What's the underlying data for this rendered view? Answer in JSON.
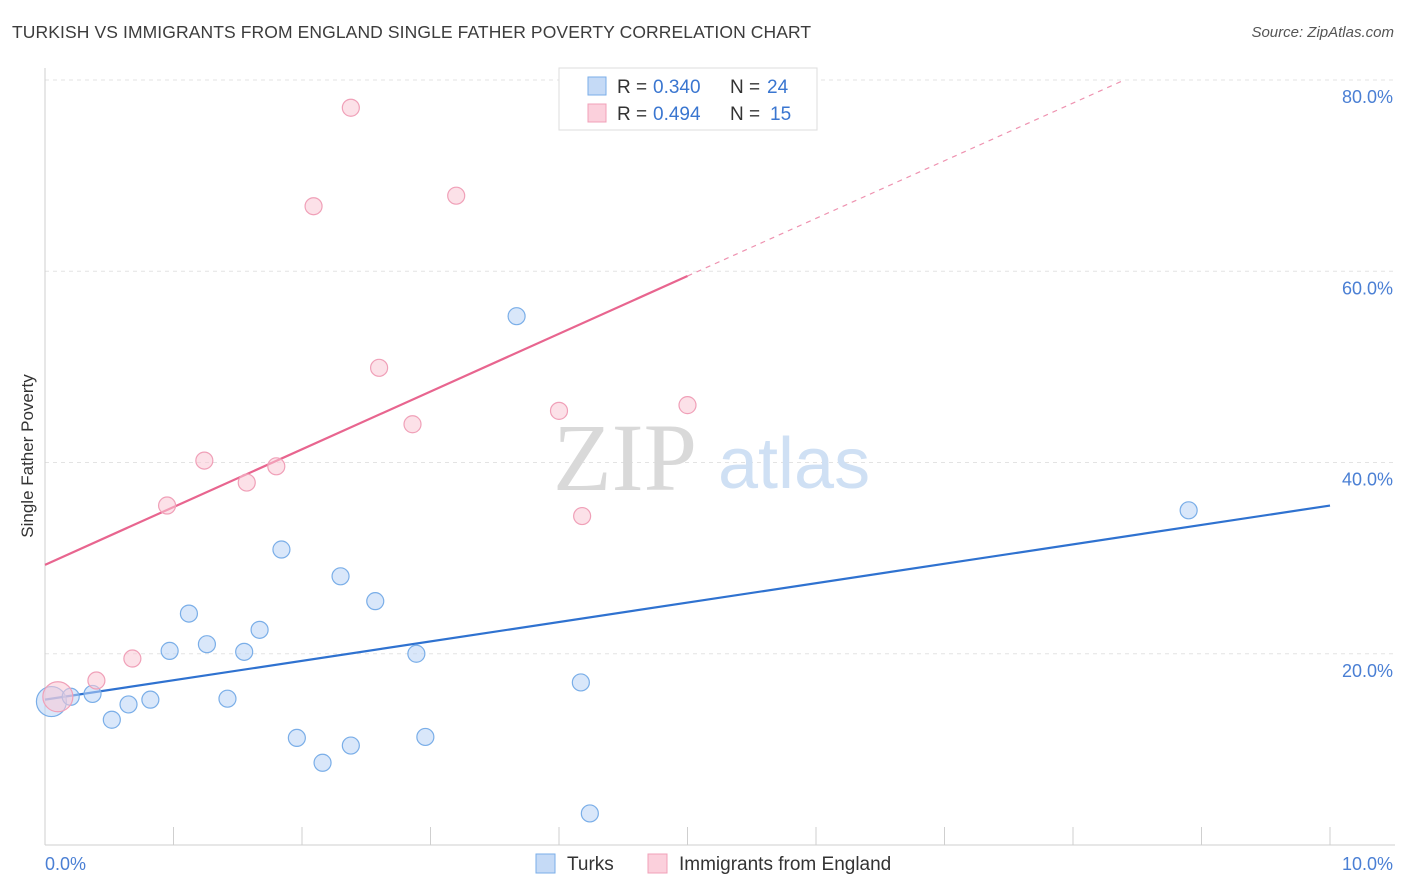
{
  "title": "TURKISH VS IMMIGRANTS FROM ENGLAND SINGLE FATHER POVERTY CORRELATION CHART",
  "source": "Source: ZipAtlas.com",
  "watermark": {
    "zip": "ZIP",
    "atlas": "atlas"
  },
  "legend_box": {
    "rows": [
      {
        "r_label": "R =",
        "r_value": "0.340",
        "n_label": "N =",
        "n_value": "24"
      },
      {
        "r_label": "R =",
        "r_value": "0.494",
        "n_label": "N =",
        "n_value": "15"
      }
    ]
  },
  "bottom_legend": [
    "Turks",
    "Immigrants from England"
  ],
  "chart_data": {
    "type": "scatter",
    "xlabel": "",
    "ylabel": "Single Father Poverty",
    "xlim": [
      0,
      10
    ],
    "ylim": [
      0,
      80
    ],
    "x_tick_labels": [
      {
        "v": 0,
        "label": "0.0%"
      },
      {
        "v": 10,
        "label": "10.0%"
      }
    ],
    "y_tick_labels": [
      {
        "v": 20,
        "label": "20.0%"
      },
      {
        "v": 40,
        "label": "40.0%"
      },
      {
        "v": 60,
        "label": "60.0%"
      },
      {
        "v": 80,
        "label": "80.0%"
      }
    ],
    "grid": true,
    "colors": {
      "Turks": "#7aaee8",
      "Immigrants from England": "#f0a0b8",
      "Turks_line": "#2f72d0",
      "Immigrants from England_line": "#e8658f"
    },
    "series": [
      {
        "name": "Turks",
        "r": 0.34,
        "n": 24,
        "trend": {
          "x0": 0,
          "y0": 15.2,
          "x1": 10,
          "y1": 35.5,
          "dashed_to": null
        },
        "points": [
          {
            "x": 0.05,
            "y": 15.0,
            "big": true
          },
          {
            "x": 0.2,
            "y": 15.5
          },
          {
            "x": 0.37,
            "y": 15.8
          },
          {
            "x": 0.52,
            "y": 13.1
          },
          {
            "x": 0.65,
            "y": 14.7
          },
          {
            "x": 0.82,
            "y": 15.2
          },
          {
            "x": 0.97,
            "y": 20.3
          },
          {
            "x": 1.12,
            "y": 24.2
          },
          {
            "x": 1.26,
            "y": 21.0
          },
          {
            "x": 1.42,
            "y": 15.3
          },
          {
            "x": 1.55,
            "y": 20.2
          },
          {
            "x": 1.67,
            "y": 22.5
          },
          {
            "x": 1.84,
            "y": 30.9
          },
          {
            "x": 1.96,
            "y": 11.2
          },
          {
            "x": 2.16,
            "y": 8.6
          },
          {
            "x": 2.3,
            "y": 28.1
          },
          {
            "x": 2.38,
            "y": 10.4
          },
          {
            "x": 2.57,
            "y": 25.5
          },
          {
            "x": 2.89,
            "y": 20.0
          },
          {
            "x": 2.96,
            "y": 11.3
          },
          {
            "x": 3.67,
            "y": 55.3
          },
          {
            "x": 4.17,
            "y": 17.0
          },
          {
            "x": 4.24,
            "y": 3.3
          },
          {
            "x": 8.9,
            "y": 35.0
          }
        ]
      },
      {
        "name": "Immigrants from England",
        "r": 0.494,
        "n": 15,
        "trend": {
          "x0": 0,
          "y0": 29.3,
          "x1": 5.0,
          "y1": 59.5,
          "dashed_to": {
            "x": 8.4,
            "y": 80
          }
        },
        "points": [
          {
            "x": 0.1,
            "y": 15.5,
            "big": true
          },
          {
            "x": 0.4,
            "y": 17.2
          },
          {
            "x": 0.68,
            "y": 19.5
          },
          {
            "x": 0.95,
            "y": 35.5
          },
          {
            "x": 1.24,
            "y": 40.2
          },
          {
            "x": 1.57,
            "y": 37.9
          },
          {
            "x": 1.8,
            "y": 39.6
          },
          {
            "x": 2.09,
            "y": 66.8
          },
          {
            "x": 2.38,
            "y": 77.1
          },
          {
            "x": 2.6,
            "y": 49.9
          },
          {
            "x": 2.86,
            "y": 44.0
          },
          {
            "x": 3.2,
            "y": 67.9
          },
          {
            "x": 4.0,
            "y": 45.4
          },
          {
            "x": 4.18,
            "y": 34.4
          },
          {
            "x": 5.0,
            "y": 46.0
          }
        ]
      }
    ]
  }
}
